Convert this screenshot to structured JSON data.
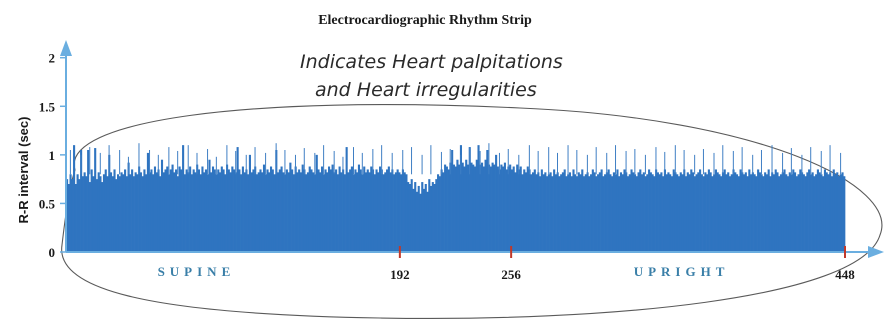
{
  "chart_data": {
    "type": "bar",
    "title": "Electrocardiographic Rhythm Strip",
    "ylabel": "R-R interval (sec)",
    "xlabel": "",
    "ylim": [
      0,
      2.1
    ],
    "xlim": [
      0,
      448
    ],
    "y_ticks": [
      "0",
      "0.5",
      "1",
      "1.5",
      "2"
    ],
    "x_ticks": [
      {
        "value": 192,
        "label": "192"
      },
      {
        "value": 256,
        "label": "256"
      },
      {
        "value": 448,
        "label": "448"
      }
    ],
    "regions": [
      {
        "label": "SUPINE",
        "center": 75
      },
      {
        "label": "UPRIGHT",
        "center": 354
      }
    ],
    "series_color": "#2f74c0",
    "tick_mark_color": "#c0392b",
    "axis_color": "#6aaee0",
    "grid": false,
    "legend": "none",
    "values": [
      0.75,
      0.7,
      0.8,
      0.75,
      1.1,
      0.7,
      0.8,
      0.75,
      1.05,
      0.78,
      0.82,
      0.78,
      1.05,
      0.72,
      0.85,
      0.78,
      1.07,
      0.75,
      0.82,
      0.78,
      0.72,
      0.8,
      0.85,
      0.78,
      1.0,
      0.82,
      0.78,
      0.85,
      0.75,
      0.8,
      0.78,
      0.82,
      0.8,
      0.85,
      0.78,
      0.92,
      0.8,
      0.85,
      0.78,
      0.82,
      0.8,
      0.88,
      0.82,
      0.78,
      0.85,
      0.8,
      1.02,
      0.82,
      0.85,
      0.8,
      0.88,
      0.82,
      0.85,
      0.78,
      0.95,
      0.82,
      0.85,
      0.88,
      0.8,
      0.85,
      0.9,
      0.82,
      0.85,
      0.78,
      0.88,
      0.85,
      1.1,
      0.8,
      0.85,
      0.82,
      0.88,
      0.8,
      0.85,
      0.82,
      0.9,
      0.85,
      0.8,
      0.88,
      0.82,
      0.85,
      0.8,
      0.95,
      0.82,
      0.88,
      0.85,
      0.8,
      0.85,
      0.82,
      0.88,
      0.85,
      0.8,
      0.9,
      0.85,
      0.82,
      0.88,
      0.85,
      0.82,
      1.08,
      0.85,
      0.8,
      0.88,
      0.82,
      0.85,
      0.8,
      1.0,
      0.82,
      0.85,
      0.88,
      0.8,
      0.82,
      0.85,
      0.82,
      0.9,
      0.8,
      0.85,
      0.82,
      0.88,
      0.85,
      0.8,
      1.05,
      0.82,
      0.85,
      0.88,
      0.82,
      0.8,
      0.85,
      0.82,
      0.92,
      0.85,
      0.8,
      0.88,
      0.82,
      0.85,
      0.82,
      0.9,
      0.85,
      0.8,
      0.82,
      0.88,
      0.85,
      0.82,
      0.8,
      1.0,
      0.85,
      0.82,
      0.88,
      0.8,
      0.85,
      0.82,
      0.88,
      0.85,
      0.9,
      0.82,
      0.85,
      0.8,
      0.88,
      0.82,
      0.85,
      0.8,
      1.08,
      0.82,
      0.85,
      0.88,
      0.8,
      0.85,
      0.82,
      0.9,
      0.85,
      0.8,
      0.88,
      0.82,
      0.85,
      0.82,
      0.88,
      0.85,
      0.8,
      0.85,
      0.82,
      0.88,
      0.85,
      0.8,
      0.82,
      0.85,
      0.88,
      0.82,
      0.85,
      0.8,
      0.82,
      0.85,
      0.82,
      0.8,
      0.85,
      0.82,
      0.8,
      0.72,
      0.7,
      0.75,
      0.65,
      0.72,
      0.62,
      0.68,
      0.6,
      0.72,
      0.65,
      0.7,
      0.62,
      0.75,
      0.68,
      0.72,
      0.7,
      0.75,
      0.8,
      0.78,
      0.85,
      0.82,
      0.9,
      0.88,
      0.85,
      0.92,
      1.05,
      0.9,
      0.88,
      0.95,
      0.9,
      1.1,
      0.92,
      0.88,
      0.95,
      0.9,
      1.08,
      0.92,
      0.9,
      0.88,
      0.95,
      1.1,
      0.9,
      0.92,
      0.88,
      0.95,
      1.05,
      0.9,
      0.88,
      0.92,
      0.9,
      1.0,
      0.88,
      0.85,
      0.9,
      0.88,
      0.92,
      0.85,
      0.88,
      0.9,
      0.85,
      0.88,
      0.82,
      0.9,
      0.85,
      0.88,
      0.8,
      0.85,
      0.82,
      0.88,
      0.85,
      0.8,
      0.82,
      0.85,
      0.8,
      0.82,
      0.78,
      0.85,
      0.8,
      0.82,
      0.78,
      0.8,
      0.82,
      0.78,
      0.85,
      0.8,
      0.82,
      0.78,
      0.8,
      0.82,
      0.85,
      0.78,
      0.8,
      0.82,
      0.78,
      0.85,
      0.8,
      0.78,
      0.82,
      0.8,
      0.85,
      0.78,
      0.8,
      0.82,
      0.78,
      0.8,
      0.85,
      0.82,
      0.78,
      0.8,
      0.82,
      0.85,
      0.78,
      0.8,
      0.82,
      0.85,
      0.8,
      0.78,
      0.82,
      0.8,
      0.85,
      0.78,
      0.82,
      0.8,
      0.85,
      0.82,
      0.78,
      0.8,
      0.85,
      0.82,
      0.8,
      0.78,
      0.82,
      0.85,
      0.8,
      0.82,
      0.78,
      0.8,
      0.85,
      0.82,
      0.8,
      0.78,
      0.85,
      0.82,
      0.8,
      0.82,
      0.78,
      0.85,
      0.8,
      0.82,
      0.8,
      0.78,
      0.85,
      0.82,
      0.8,
      0.78,
      0.82,
      0.8,
      0.85,
      0.78,
      0.82,
      0.8,
      0.85,
      0.82,
      0.78,
      0.8,
      0.82,
      0.85,
      0.8,
      0.78,
      0.82,
      0.8,
      0.85,
      0.82,
      0.78,
      0.8,
      0.85,
      0.82,
      0.8,
      0.78,
      0.82,
      0.85,
      0.8,
      0.82,
      0.78,
      0.8,
      0.85,
      0.82,
      0.8,
      0.78,
      0.85,
      0.82,
      0.8,
      0.82,
      0.78,
      0.85,
      0.8,
      0.82,
      0.8,
      0.78,
      0.85,
      0.82,
      0.8,
      0.78,
      0.82,
      0.8,
      0.85,
      0.78,
      0.82,
      0.8,
      0.85,
      0.82,
      0.78,
      0.8,
      0.82,
      0.85,
      0.8,
      0.78,
      0.82,
      0.8,
      0.85,
      0.82,
      0.78,
      0.8,
      0.85,
      0.82,
      0.8,
      0.78,
      0.82,
      0.85,
      0.8,
      0.82,
      0.78,
      0.8,
      0.85,
      0.82,
      0.8,
      0.78,
      0.85,
      0.82,
      0.8,
      0.82,
      0.78,
      0.85,
      0.8,
      0.82,
      0.78,
      0.8,
      0.82,
      0.78
    ],
    "peaks": [
      1.05,
      1.0,
      1.08,
      1.02,
      1.1,
      1.05,
      0.98,
      1.12,
      1.05,
      1.0,
      1.08,
      1.04,
      1.1,
      1.02,
      1.06,
      0.98,
      1.1,
      1.04,
      1.0,
      1.08,
      1.02,
      1.12,
      1.05,
      1.0,
      1.07,
      1.02,
      1.1,
      1.04,
      0.98,
      1.08,
      1.02,
      1.06,
      1.1,
      1.02,
      1.05,
      1.08,
      1.0,
      1.1,
      1.03,
      1.06,
      1.0,
      1.08,
      1.04,
      1.12,
      1.02,
      1.06,
      1.0,
      1.1,
      1.04,
      1.08,
      1.02,
      1.1,
      1.05,
      1.0,
      1.08,
      1.02,
      1.1,
      1.04,
      1.06,
      1.0,
      1.08,
      1.03,
      1.1,
      1.05,
      1.0,
      1.06,
      1.02,
      1.1,
      1.04,
      1.08,
      1.0,
      1.05,
      1.1,
      1.02,
      1.07,
      1.0,
      1.08,
      1.04,
      1.1,
      1.02
    ]
  },
  "annotation": {
    "line1": "Indicates Heart palpitations",
    "line2": "and Heart irregularities"
  }
}
